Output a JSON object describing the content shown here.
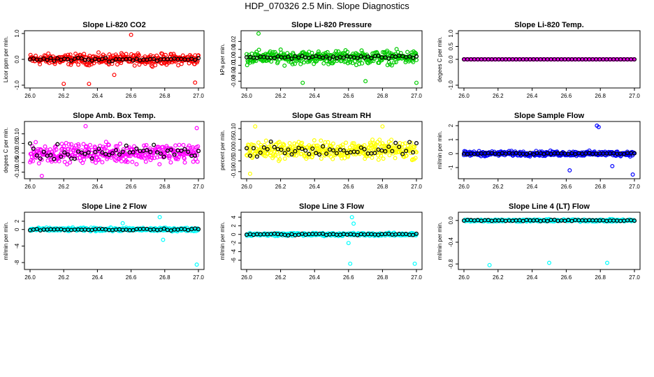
{
  "page_title": "HDP_070326  2.5 Min. Slope Diagnostics",
  "colors": {
    "black_series": "#000000",
    "frame": "#000000"
  },
  "chart_data": [
    {
      "type": "scatter",
      "title": "Slope Li-820 CO2",
      "ylabel": "Licor ppm per min.",
      "color": "#ff0000",
      "xlim": [
        26.0,
        27.0
      ],
      "ylim": [
        -1,
        1
      ],
      "xticks": [
        "26.0",
        "26.2",
        "26.4",
        "26.6",
        "26.8",
        "27.0"
      ],
      "yticks": [
        "-1.0",
        "0.0",
        "1.0"
      ],
      "ytick_values": [
        -1,
        0,
        1
      ],
      "spread": 0.3,
      "black_spread": 0.1,
      "outliers": [
        {
          "x": 26.6,
          "y": 0.95
        },
        {
          "x": 26.35,
          "y": -0.95
        },
        {
          "x": 26.2,
          "y": -0.95
        },
        {
          "x": 26.98,
          "y": -0.9
        },
        {
          "x": 26.5,
          "y": -0.6
        }
      ]
    },
    {
      "type": "scatter",
      "title": "Slope Li-820 Pressure",
      "ylabel": "kPa per min.",
      "color": "#00cc00",
      "xlim": [
        26.0,
        27.0
      ],
      "ylim": [
        -0.035,
        0.03
      ],
      "xticks": [
        "26.0",
        "26.2",
        "26.4",
        "26.6",
        "26.8",
        "27.0"
      ],
      "yticks": [
        "-0.03",
        "-0.02",
        "-0.01",
        "0.00",
        "0.01",
        "0.02"
      ],
      "ytick_values": [
        -0.03,
        -0.02,
        -0.01,
        0.0,
        0.01,
        0.02
      ],
      "spread": 0.012,
      "black_spread": 0.003,
      "outliers": [
        {
          "x": 26.07,
          "y": 0.03
        },
        {
          "x": 26.33,
          "y": -0.032
        },
        {
          "x": 26.7,
          "y": -0.03
        },
        {
          "x": 27.0,
          "y": -0.032
        }
      ]
    },
    {
      "type": "scatter",
      "title": "Slope Li-820 Temp.",
      "ylabel": "degees C per min.",
      "color": "#ff00ff",
      "xlim": [
        26.0,
        27.0
      ],
      "ylim": [
        -1,
        1
      ],
      "xticks": [
        "26.0",
        "26.2",
        "26.4",
        "26.6",
        "26.8",
        "27.0"
      ],
      "yticks": [
        "-1.0",
        "0.0",
        "0.5",
        "1.0"
      ],
      "ytick_values": [
        -1,
        0,
        0.5,
        1
      ],
      "spread": 0.0,
      "black_spread": 0.0,
      "outliers": []
    },
    {
      "type": "scatter",
      "title": "Slope Amb. Box Temp.",
      "ylabel": "degees C per min.",
      "color": "#ff00ff",
      "xlim": [
        26.0,
        27.0
      ],
      "ylim": [
        -0.12,
        0.15
      ],
      "xticks": [
        "26.0",
        "26.2",
        "26.4",
        "26.6",
        "26.8",
        "27.0"
      ],
      "yticks": [
        "-0.10",
        "-0.05",
        "0.00",
        "0.05",
        "0.10"
      ],
      "ytick_values": [
        -0.1,
        -0.05,
        0.0,
        0.05,
        0.1
      ],
      "spread": 0.07,
      "black_spread": 0.06,
      "outliers": [
        {
          "x": 26.33,
          "y": 0.14
        },
        {
          "x": 26.99,
          "y": 0.13
        },
        {
          "x": 26.07,
          "y": -0.12
        }
      ]
    },
    {
      "type": "scatter",
      "title": "Slope Gas Stream RH",
      "ylabel": "percent per min.",
      "color": "#ffff00",
      "xlim": [
        26.0,
        27.0
      ],
      "ylim": [
        -0.12,
        0.12
      ],
      "xticks": [
        "26.0",
        "26.2",
        "26.4",
        "26.6",
        "26.8",
        "27.0"
      ],
      "yticks": [
        "-0.10",
        "-0.05",
        "0.00",
        "0.05",
        "0.10"
      ],
      "ytick_values": [
        -0.1,
        -0.05,
        0.0,
        0.05,
        0.1
      ],
      "spread": 0.06,
      "black_spread": 0.05,
      "outliers": [
        {
          "x": 26.05,
          "y": 0.11
        },
        {
          "x": 26.8,
          "y": 0.11
        },
        {
          "x": 26.02,
          "y": -0.11
        }
      ]
    },
    {
      "type": "scatter",
      "title": "Slope Sample Flow",
      "ylabel": "ml/min per min.",
      "color": "#0000ff",
      "xlim": [
        26.0,
        27.0
      ],
      "ylim": [
        -1.6,
        2.1
      ],
      "xticks": [
        "26.0",
        "26.2",
        "26.4",
        "26.6",
        "26.8",
        "27.0"
      ],
      "yticks": [
        "-1",
        "0",
        "1",
        "2"
      ],
      "ytick_values": [
        -1,
        0,
        1,
        2
      ],
      "spread": 0.25,
      "black_spread": 0.1,
      "outliers": [
        {
          "x": 26.78,
          "y": 2.0
        },
        {
          "x": 26.79,
          "y": 1.9
        },
        {
          "x": 26.99,
          "y": -1.5
        },
        {
          "x": 26.62,
          "y": -1.2
        },
        {
          "x": 26.87,
          "y": -0.9
        }
      ]
    },
    {
      "type": "scatter",
      "title": "Slope Line 2 Flow",
      "ylabel": "ml/min per min.",
      "color": "#00ffff",
      "xlim": [
        26.0,
        27.0
      ],
      "ylim": [
        -9,
        3.5
      ],
      "xticks": [
        "26.0",
        "26.2",
        "26.4",
        "26.6",
        "26.8",
        "27.0"
      ],
      "yticks": [
        "-8",
        "-4",
        "0",
        "2"
      ],
      "ytick_values": [
        -8,
        -4,
        0,
        2
      ],
      "spread": 0.6,
      "black_spread": 0.3,
      "outliers": [
        {
          "x": 26.77,
          "y": 3.0
        },
        {
          "x": 26.79,
          "y": -2.5
        },
        {
          "x": 26.99,
          "y": -8.5
        },
        {
          "x": 26.55,
          "y": 1.5
        }
      ]
    },
    {
      "type": "scatter",
      "title": "Slope Line 3 Flow",
      "ylabel": "ml/min per min.",
      "color": "#00ffff",
      "xlim": [
        26.0,
        27.0
      ],
      "ylim": [
        -7.5,
        4.5
      ],
      "xticks": [
        "26.0",
        "26.2",
        "26.4",
        "26.6",
        "26.8",
        "27.0"
      ],
      "yticks": [
        "-6",
        "-4",
        "-2",
        "0",
        "2",
        "4"
      ],
      "ytick_values": [
        -6,
        -4,
        -2,
        0,
        2,
        4
      ],
      "spread": 0.5,
      "black_spread": 0.3,
      "outliers": [
        {
          "x": 26.62,
          "y": 4.0
        },
        {
          "x": 26.61,
          "y": -6.8
        },
        {
          "x": 26.99,
          "y": -6.8
        },
        {
          "x": 26.6,
          "y": -2.0
        },
        {
          "x": 26.63,
          "y": 2.5
        }
      ]
    },
    {
      "type": "scatter",
      "title": "Slope Line 4 (LT) Flow",
      "ylabel": "ml/min per min.",
      "color": "#00ffff",
      "xlim": [
        26.0,
        27.0
      ],
      "ylim": [
        -0.85,
        0.1
      ],
      "xticks": [
        "26.0",
        "26.2",
        "26.4",
        "26.6",
        "26.8",
        "27.0"
      ],
      "yticks": [
        "-0.8",
        "-0.4",
        "0.0"
      ],
      "ytick_values": [
        -0.8,
        -0.4,
        0.0
      ],
      "spread": 0.03,
      "black_spread": 0.02,
      "outliers": [
        {
          "x": 26.15,
          "y": -0.82
        },
        {
          "x": 26.5,
          "y": -0.78
        },
        {
          "x": 26.84,
          "y": -0.78
        }
      ]
    }
  ]
}
